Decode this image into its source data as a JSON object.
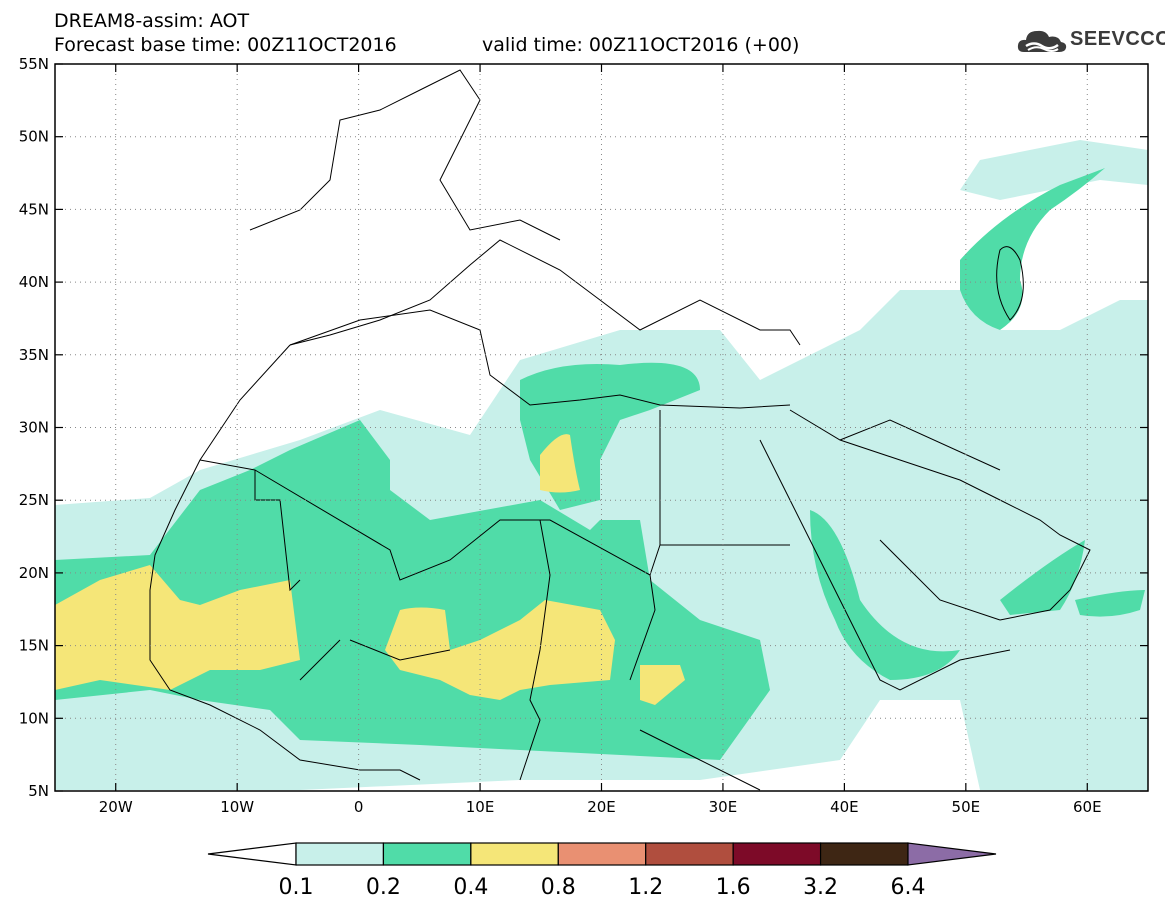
{
  "header": {
    "title_line1": "DREAM8-assim: AOT",
    "title_line2_base": "Forecast base time: 00Z11OCT2016",
    "title_line2_valid": "valid time: 00Z11OCT2016 (+00)"
  },
  "logo": {
    "text": "SEEVCCC",
    "icon": "cloud-icon",
    "color": "#3b3b3b"
  },
  "map": {
    "lon_range": [
      -25,
      65
    ],
    "lat_range": [
      5,
      55
    ],
    "lon_labels": [
      {
        "lon": -20,
        "text": "20W"
      },
      {
        "lon": -10,
        "text": "10W"
      },
      {
        "lon": 0,
        "text": "0"
      },
      {
        "lon": 10,
        "text": "10E"
      },
      {
        "lon": 20,
        "text": "20E"
      },
      {
        "lon": 30,
        "text": "30E"
      },
      {
        "lon": 40,
        "text": "40E"
      },
      {
        "lon": 50,
        "text": "50E"
      },
      {
        "lon": 60,
        "text": "60E"
      }
    ],
    "lat_labels": [
      {
        "lat": 55,
        "text": "55N"
      },
      {
        "lat": 50,
        "text": "50N"
      },
      {
        "lat": 45,
        "text": "45N"
      },
      {
        "lat": 40,
        "text": "40N"
      },
      {
        "lat": 35,
        "text": "35N"
      },
      {
        "lat": 30,
        "text": "30N"
      },
      {
        "lat": 25,
        "text": "25N"
      },
      {
        "lat": 20,
        "text": "20N"
      },
      {
        "lat": 15,
        "text": "15N"
      },
      {
        "lat": 10,
        "text": "10N"
      },
      {
        "lat": 5,
        "text": "5N"
      }
    ],
    "gridlines": "dotted"
  },
  "colorbar": {
    "levels": [
      "0.1",
      "0.2",
      "0.4",
      "0.8",
      "1.2",
      "1.6",
      "3.2",
      "6.4"
    ],
    "low_color": "#ffffff",
    "colors": [
      "#c8f0ea",
      "#50dca8",
      "#f5e678",
      "#e99072",
      "#b04e3e",
      "#7d0a28",
      "#3e2614"
    ],
    "high_color": "#8c6ca6"
  }
}
